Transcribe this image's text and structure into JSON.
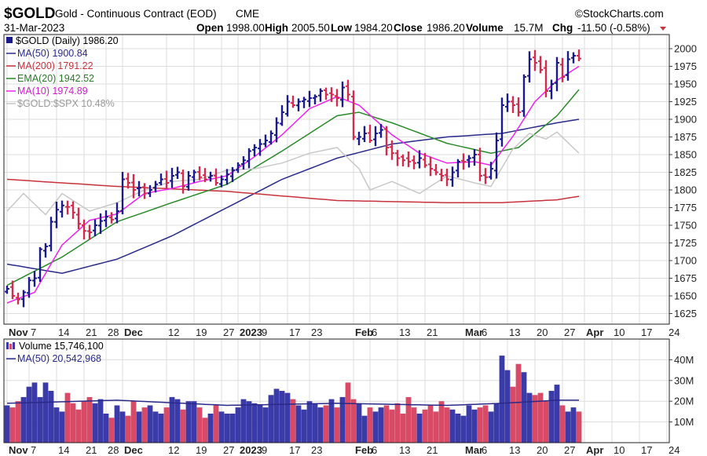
{
  "header": {
    "symbol": "$GOLD",
    "name": "Gold - Continuous Contract (EOD)",
    "exchange": "CME",
    "date": "31-Mar-2023",
    "brand": "©StockCharts.com",
    "open_label": "Open",
    "open_value": "1998.00",
    "high_label": "High",
    "high_value": "2005.50",
    "low_label": "Low",
    "low_value": "1984.20",
    "close_label": "Close",
    "close_value": "1986.20",
    "volume_label": "Volume",
    "volume_value": "15.7M",
    "chg_label": "Chg",
    "chg_value": "-11.50 (-0.58%)"
  },
  "legend": {
    "price": [
      "$GOLD (Daily) 1986.20",
      "MA(50) 1900.84",
      "MA(200) 1791.22",
      "EMA(20) 1942.52",
      "MA(10) 1974.89",
      "$GOLD:$SPX 10.48%"
    ],
    "volume": [
      "Volume 15,746,100",
      "MA(50) 20,542,968"
    ]
  },
  "colors": {
    "up": "#1a1a8c",
    "down": "#d42a4e",
    "ma50": "#2a2a8a",
    "ma200": "#c8323c",
    "ema20": "#2a8a2a",
    "ma10": "#ee22ee",
    "ratio": "#c8c8c8",
    "vol_up": "#3a3aa8",
    "vol_down": "#d84a66",
    "grid": "#dddddd",
    "border": "#222222"
  },
  "x_labels": [
    {
      "t": "Nov",
      "i": 0,
      "bold": true
    },
    {
      "t": "7",
      "i": 4
    },
    {
      "t": "14",
      "i": 9
    },
    {
      "t": "21",
      "i": 14
    },
    {
      "t": "28",
      "i": 18
    },
    {
      "t": "Dec",
      "i": 21,
      "bold": true
    },
    {
      "t": "12",
      "i": 29
    },
    {
      "t": "19",
      "i": 34
    },
    {
      "t": "27",
      "i": 39
    },
    {
      "t": "2023",
      "i": 42,
      "bold": true
    },
    {
      "t": "9",
      "i": 46
    },
    {
      "t": "17",
      "i": 51
    },
    {
      "t": "23",
      "i": 55
    },
    {
      "t": "Feb",
      "i": 63,
      "bold": true
    },
    {
      "t": "6",
      "i": 66
    },
    {
      "t": "13",
      "i": 71
    },
    {
      "t": "21",
      "i": 76
    },
    {
      "t": "Mar",
      "i": 83,
      "bold": true
    },
    {
      "t": "6",
      "i": 86
    },
    {
      "t": "13",
      "i": 91
    },
    {
      "t": "20",
      "i": 96
    },
    {
      "t": "27",
      "i": 101
    },
    {
      "t": "Apr",
      "i": 105,
      "bold": true
    },
    {
      "t": "10",
      "i": 110
    },
    {
      "t": "17",
      "i": 115
    },
    {
      "t": "24",
      "i": 120
    }
  ],
  "chart_data": [
    {
      "type": "ohlc",
      "title": "$GOLD (Daily) 1986.20",
      "ylim": [
        1610,
        2020
      ],
      "yticks": [
        1625,
        1650,
        1675,
        1700,
        1725,
        1750,
        1775,
        1800,
        1825,
        1850,
        1875,
        1900,
        1925,
        1950,
        1975,
        2000
      ],
      "close": [
        1660,
        1650,
        1645,
        1655,
        1672,
        1675,
        1716,
        1720,
        1755,
        1772,
        1778,
        1776,
        1768,
        1752,
        1742,
        1740,
        1750,
        1756,
        1762,
        1758,
        1770,
        1815,
        1810,
        1800,
        1803,
        1795,
        1800,
        1808,
        1815,
        1810,
        1820,
        1825,
        1805,
        1820,
        1825,
        1818,
        1815,
        1820,
        1810,
        1815,
        1822,
        1828,
        1835,
        1842,
        1855,
        1860,
        1865,
        1870,
        1880,
        1895,
        1910,
        1925,
        1920,
        1925,
        1928,
        1930,
        1932,
        1940,
        1935,
        1935,
        1930,
        1945,
        1935,
        1875,
        1875,
        1880,
        1870,
        1880,
        1885,
        1860,
        1852,
        1845,
        1842,
        1840,
        1838,
        1845,
        1835,
        1830,
        1825,
        1820,
        1815,
        1825,
        1840,
        1840,
        1845,
        1850,
        1820,
        1818,
        1830,
        1870,
        1920,
        1925,
        1920,
        1910,
        1960,
        1985,
        1980,
        1970,
        1940,
        1950,
        1980,
        1960,
        1985,
        1990,
        1986
      ],
      "series": [
        {
          "name": "MA(50) 1900.84",
          "anchors": [
            [
              0,
              1695
            ],
            [
              10,
              1682
            ],
            [
              20,
              1702
            ],
            [
              30,
              1735
            ],
            [
              40,
              1775
            ],
            [
              50,
              1815
            ],
            [
              60,
              1845
            ],
            [
              70,
              1865
            ],
            [
              80,
              1875
            ],
            [
              90,
              1880
            ],
            [
              100,
              1895
            ],
            [
              104,
              1900
            ]
          ]
        },
        {
          "name": "MA(200) 1791.22",
          "anchors": [
            [
              0,
              1815
            ],
            [
              20,
              1805
            ],
            [
              40,
              1798
            ],
            [
              60,
              1785
            ],
            [
              80,
              1782
            ],
            [
              90,
              1782
            ],
            [
              100,
              1786
            ],
            [
              104,
              1791
            ]
          ]
        },
        {
          "name": "EMA(20) 1942.52",
          "anchors": [
            [
              0,
              1665
            ],
            [
              10,
              1705
            ],
            [
              20,
              1755
            ],
            [
              30,
              1782
            ],
            [
              40,
              1808
            ],
            [
              50,
              1855
            ],
            [
              60,
              1905
            ],
            [
              64,
              1910
            ],
            [
              70,
              1895
            ],
            [
              80,
              1866
            ],
            [
              88,
              1852
            ],
            [
              93,
              1860
            ],
            [
              100,
              1905
            ],
            [
              104,
              1942
            ]
          ]
        },
        {
          "name": "MA(10) 1974.89",
          "anchors": [
            [
              0,
              1640
            ],
            [
              5,
              1655
            ],
            [
              10,
              1722
            ],
            [
              15,
              1757
            ],
            [
              20,
              1766
            ],
            [
              25,
              1795
            ],
            [
              30,
              1802
            ],
            [
              35,
              1812
            ],
            [
              40,
              1820
            ],
            [
              45,
              1847
            ],
            [
              50,
              1878
            ],
            [
              55,
              1915
            ],
            [
              60,
              1932
            ],
            [
              64,
              1920
            ],
            [
              70,
              1878
            ],
            [
              75,
              1852
            ],
            [
              80,
              1838
            ],
            [
              85,
              1840
            ],
            [
              88,
              1835
            ],
            [
              92,
              1876
            ],
            [
              96,
              1925
            ],
            [
              100,
              1955
            ],
            [
              104,
              1975
            ]
          ]
        },
        {
          "name": "$GOLD:$SPX 10.48%",
          "anchors": [
            [
              0,
              1770
            ],
            [
              3,
              1795
            ],
            [
              7,
              1765
            ],
            [
              10,
              1795
            ],
            [
              15,
              1770
            ],
            [
              20,
              1782
            ],
            [
              25,
              1800
            ],
            [
              30,
              1812
            ],
            [
              35,
              1815
            ],
            [
              40,
              1828
            ],
            [
              45,
              1830
            ],
            [
              50,
              1838
            ],
            [
              55,
              1852
            ],
            [
              60,
              1860
            ],
            [
              64,
              1830
            ],
            [
              66,
              1800
            ],
            [
              70,
              1812
            ],
            [
              75,
              1795
            ],
            [
              80,
              1820
            ],
            [
              85,
              1810
            ],
            [
              88,
              1805
            ],
            [
              92,
              1858
            ],
            [
              95,
              1880
            ],
            [
              98,
              1872
            ],
            [
              100,
              1882
            ],
            [
              104,
              1852
            ]
          ]
        }
      ]
    },
    {
      "type": "bar",
      "title": "Volume 15,746,100",
      "ylim": [
        0,
        50000000
      ],
      "yticks": [
        "10M",
        "20M",
        "30M",
        "40M"
      ],
      "volume_m": [
        18,
        17,
        20,
        22,
        27,
        29,
        22,
        29,
        25,
        17,
        15,
        24,
        19,
        16,
        20,
        22,
        19,
        21,
        14,
        12,
        18,
        15,
        13,
        20,
        15,
        17,
        18,
        15,
        14,
        17,
        22,
        21,
        16,
        20,
        20,
        17,
        12,
        14,
        18,
        15,
        14,
        14,
        17,
        21,
        20,
        19,
        18,
        17,
        23,
        26,
        25,
        24,
        21,
        18,
        16,
        20,
        19,
        17,
        18,
        21,
        17,
        22,
        29,
        21,
        19,
        13,
        17,
        15,
        17,
        18,
        16,
        19,
        14,
        22,
        17,
        14,
        16,
        18,
        15,
        20,
        17,
        16,
        14,
        13,
        18,
        16,
        17,
        18,
        15,
        19,
        42,
        35,
        27,
        38,
        34,
        24,
        23,
        24,
        20,
        25,
        28,
        18,
        15,
        17,
        15
      ],
      "series": [
        {
          "name": "MA(50) 20,542,968",
          "anchors": [
            [
              0,
              19
            ],
            [
              20,
              20.5
            ],
            [
              40,
              18
            ],
            [
              60,
              19
            ],
            [
              80,
              18
            ],
            [
              90,
              19
            ],
            [
              100,
              20.5
            ],
            [
              104,
              20.5
            ]
          ]
        }
      ]
    }
  ]
}
